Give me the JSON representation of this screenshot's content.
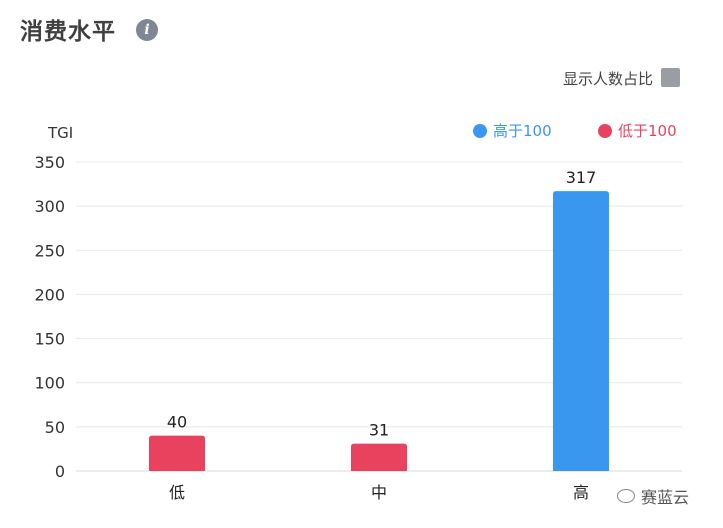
{
  "header": {
    "title": "消费水平",
    "info_icon": "info-icon"
  },
  "controls": {
    "toggle_label": "显示人数占比"
  },
  "legend": [
    {
      "label": "高于100",
      "color": "#3a97ef"
    },
    {
      "label": "低于100",
      "color": "#e8425f"
    }
  ],
  "watermark": {
    "text": "赛蓝云"
  },
  "chart_data": {
    "type": "bar",
    "ylabel": "TGI",
    "categories": [
      "低",
      "中",
      "高"
    ],
    "values": [
      40,
      31,
      317
    ],
    "colors": [
      "#e8425f",
      "#e8425f",
      "#3a97ef"
    ],
    "ylim": [
      0,
      350
    ],
    "yticks": [
      0,
      50,
      100,
      150,
      200,
      250,
      300,
      350
    ],
    "grid": true,
    "legend_position": "top-right"
  }
}
